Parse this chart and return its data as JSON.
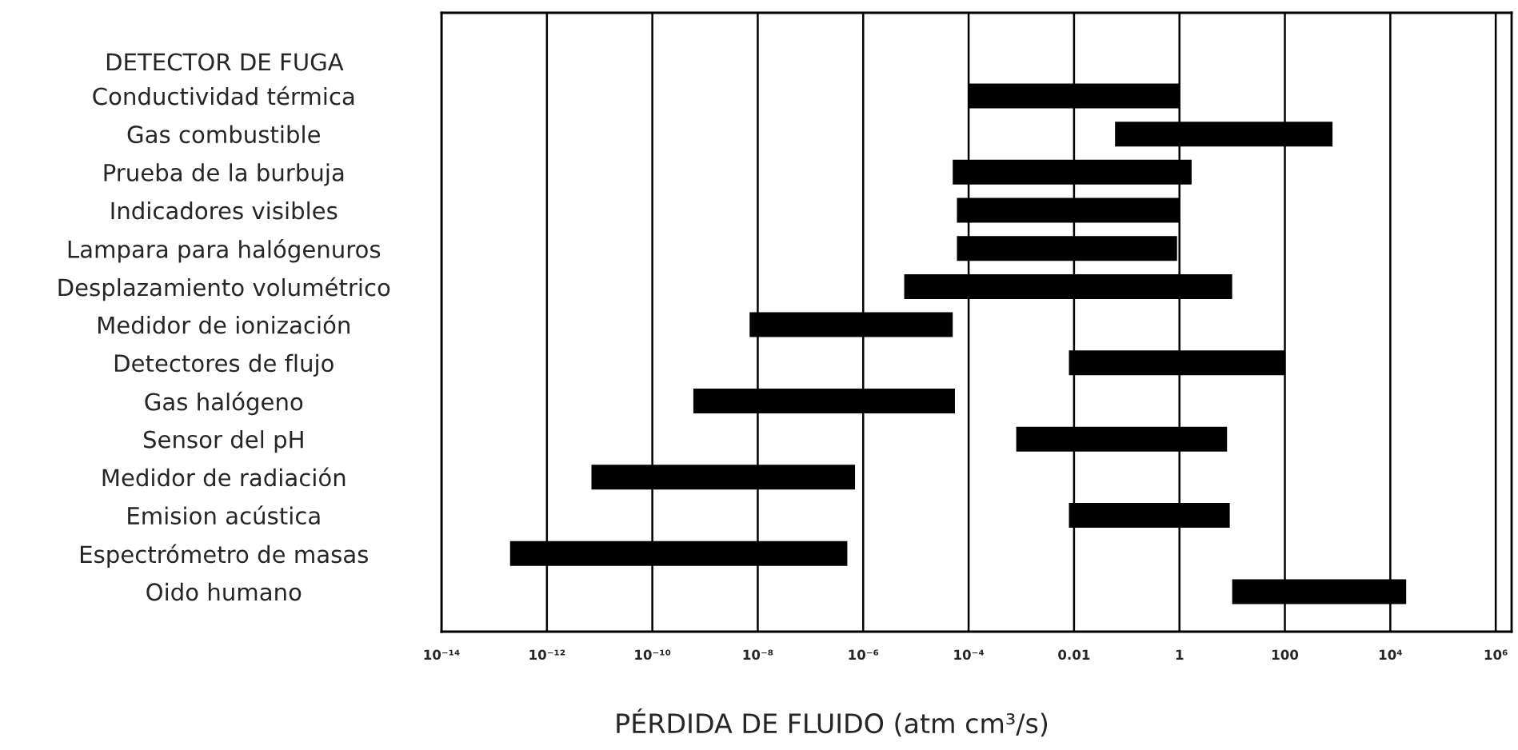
{
  "chart_data": {
    "type": "bar",
    "orientation": "horizontal",
    "log": "x",
    "xlabel": "PÉRDIDA DE FLUIDO (atm cm³/s)",
    "ylabel": "DETECTOR DE FUGA",
    "categories": [
      "Conductividad térmica",
      "Gas combustible",
      "Prueba de la burbuja",
      "Indicadores visibles",
      "Lampara para halógenuros",
      "Desplazamiento volumétrico",
      "Medidor de ionización",
      "Detectores de flujo",
      "Gas halógeno",
      "Sensor del pH",
      "Medidor de radiación",
      "Emision acústica",
      "Espectrómetro de masas",
      "Oido humano"
    ],
    "base": [
      0.0001,
      0.06,
      5e-05,
      6e-05,
      6e-05,
      6e-06,
      7e-09,
      0.008,
      6e-10,
      0.0008,
      7e-12,
      0.008,
      2e-13,
      10
    ],
    "values": [
      0.9999,
      799.94,
      1.69995,
      0.99994,
      0.89994,
      9.999994,
      4.9993e-05,
      99.992,
      5.49994e-05,
      7.9992,
      6.99993e-07,
      8.992,
      4.998e-07,
      19990
    ],
    "color": "#000000",
    "xlim": [
      1e-14,
      2000000.0
    ],
    "xticks": [
      {
        "value": 1e-14,
        "label": "10⁻¹⁴"
      },
      {
        "value": 1e-12,
        "label": "10⁻¹²"
      },
      {
        "value": 1e-10,
        "label": "10⁻¹⁰"
      },
      {
        "value": 1e-08,
        "label": "10⁻⁸"
      },
      {
        "value": 1e-06,
        "label": "10⁻⁶"
      },
      {
        "value": 0.0001,
        "label": "10⁻⁴"
      },
      {
        "value": 0.01,
        "label": "0.01"
      },
      {
        "value": 1,
        "label": "1"
      },
      {
        "value": 100,
        "label": "100"
      },
      {
        "value": 10000,
        "label": "10⁴"
      },
      {
        "value": 1000000,
        "label": "10⁶"
      }
    ],
    "grid": "x",
    "legend": false
  }
}
